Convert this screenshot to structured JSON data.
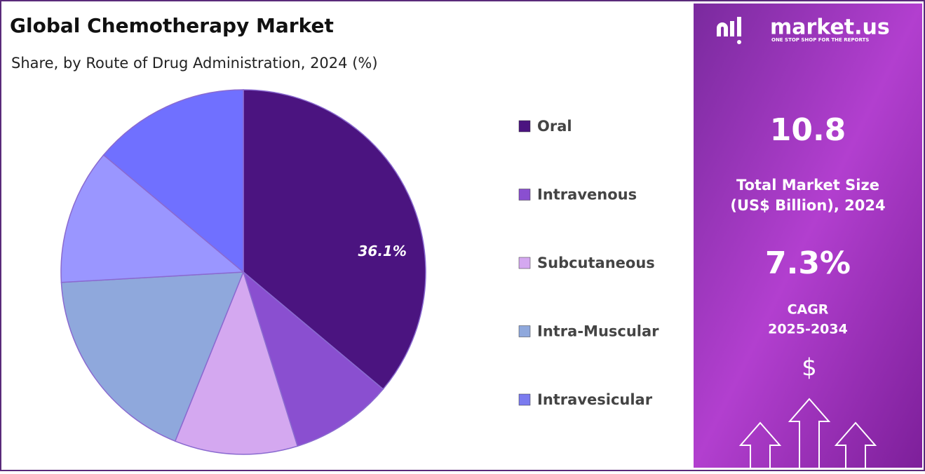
{
  "chart_data": {
    "type": "pie",
    "title": "Global Chemotherapy Market",
    "subtitle": "Share, by Route of Drug Administration, 2024 (%)",
    "categories": [
      "Oral",
      "Intravenous",
      "Subcutaneous",
      "Intra-Muscular",
      "Intravesicular",
      null
    ],
    "values": [
      36.1,
      9.1,
      10.9,
      18.0,
      12.0,
      13.9
    ],
    "value_labels": [
      "36.1%",
      null,
      null,
      null,
      null,
      null
    ],
    "colors": [
      "#4b1480",
      "#8a4fd0",
      "#d4a8f0",
      "#8fa8dc",
      "#9a96ff",
      "#7070ff"
    ],
    "legend_colors": [
      "#4b1480",
      "#8a4fd0",
      "#d4a8f0",
      "#8fa8dc",
      "#7b7bef"
    ]
  },
  "side_panel": {
    "brand": "market.us",
    "tagline": "ONE STOP SHOP FOR THE REPORTS",
    "market_size": "10.8",
    "market_size_label_1": "Total Market Size",
    "market_size_label_2": "(US$ Billion), 2024",
    "cagr": "7.3%",
    "cagr_label_1": "CAGR",
    "cagr_label_2": "2025-2034",
    "currency_icon": "$"
  }
}
